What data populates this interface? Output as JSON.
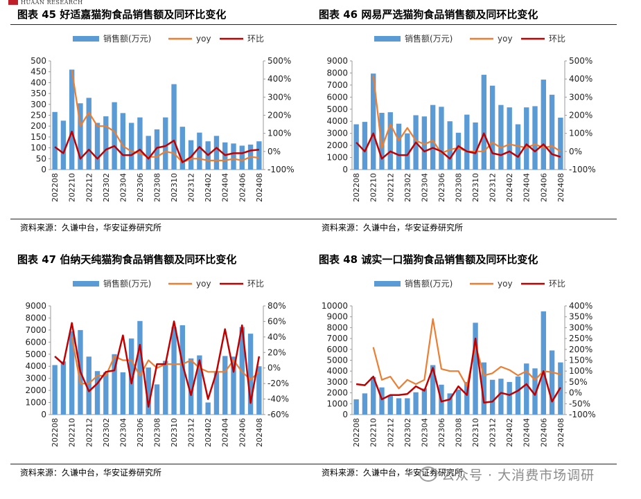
{
  "header": {
    "logo_text": "HUAAN RESEARCH"
  },
  "watermark": {
    "text": "公众号 · 大消费市场调研"
  },
  "legend_labels": {
    "sales": "销售额(万元)",
    "yoy": "yoy",
    "mom": "环比"
  },
  "colors": {
    "bar": "#5b9bd5",
    "yoy": "#ed7d31",
    "mom": "#c00000",
    "rule": "#222222"
  },
  "panels": [
    {
      "title": "图表 45 好适嘉猫狗食品销售额及同环比变化",
      "source": "资料来源：久谦中台，华安证券研究所"
    },
    {
      "title": "图表 46 网易严选猫狗食品销售额及同环比变化",
      "source": "资料来源：久谦中台，华安证券研究所"
    },
    {
      "title": "图表 47 伯纳天纯猫狗食品销售额及同环比变化",
      "source": "资料来源：久谦中台，华安证券研究所"
    },
    {
      "title": "图表 48 诚实一口猫狗食品销售额及同环比变化",
      "source": "资料来源：久谦中台，华安证券研究所"
    }
  ],
  "chart_data": [
    {
      "type": "bar+line",
      "categories": [
        "202208",
        "202209",
        "202210",
        "202211",
        "202212",
        "202301",
        "202302",
        "202303",
        "202304",
        "202305",
        "202306",
        "202307",
        "202308",
        "202309",
        "202310",
        "202311",
        "202312",
        "202401",
        "202402",
        "202403",
        "202404",
        "202405",
        "202406",
        "202407",
        "202408"
      ],
      "x_tick_labels": [
        "202208",
        "202210",
        "202212",
        "202302",
        "202304",
        "202306",
        "202308",
        "202310",
        "202312",
        "202402",
        "202404",
        "202406",
        "202408"
      ],
      "left_axis": {
        "min": 0,
        "max": 500,
        "step": 50,
        "ticks": [
          "0",
          "50",
          "100",
          "150",
          "200",
          "250",
          "300",
          "350",
          "400",
          "450",
          "500"
        ]
      },
      "right_axis": {
        "min": -100,
        "max": 500,
        "step": 100,
        "ticks": [
          "-100%",
          "0%",
          "100%",
          "200%",
          "300%",
          "400%",
          "500%"
        ]
      },
      "series": [
        {
          "name": "销售额(万元)",
          "type": "bar",
          "axis": "left",
          "values": [
            265,
            225,
            460,
            305,
            330,
            215,
            245,
            310,
            260,
            215,
            240,
            155,
            185,
            240,
            393,
            197,
            135,
            170,
            130,
            155,
            125,
            120,
            110,
            115,
            130
          ]
        },
        {
          "name": "yoy",
          "type": "line",
          "axis": "right",
          "values": [
            null,
            null,
            450,
            140,
            215,
            140,
            140,
            110,
            30,
            0,
            -10,
            -30,
            -30,
            0,
            -10,
            -60,
            -40,
            -40,
            -50,
            -50,
            -50,
            -40,
            -50,
            -30,
            -35
          ]
        },
        {
          "name": "环比",
          "type": "line",
          "axis": "right",
          "values": [
            25,
            -10,
            110,
            -40,
            10,
            -40,
            10,
            30,
            -20,
            -20,
            10,
            -40,
            20,
            30,
            60,
            -60,
            -30,
            25,
            -20,
            20,
            -20,
            -10,
            -10,
            5,
            10
          ]
        }
      ]
    },
    {
      "type": "bar+line",
      "categories": [
        "202208",
        "202209",
        "202210",
        "202211",
        "202212",
        "202301",
        "202302",
        "202303",
        "202304",
        "202305",
        "202306",
        "202307",
        "202308",
        "202309",
        "202310",
        "202311",
        "202312",
        "202401",
        "202402",
        "202403",
        "202404",
        "202405",
        "202406",
        "202407",
        "202408"
      ],
      "x_tick_labels": [
        "202208",
        "202210",
        "202212",
        "202302",
        "202304",
        "202306",
        "202308",
        "202310",
        "202312",
        "202402",
        "202404",
        "202406",
        "202408"
      ],
      "left_axis": {
        "min": 0,
        "max": 9000,
        "step": 1000,
        "ticks": [
          "0",
          "1000",
          "2000",
          "3000",
          "4000",
          "5000",
          "6000",
          "7000",
          "8000",
          "9000"
        ]
      },
      "right_axis": {
        "min": -100,
        "max": 500,
        "step": 100,
        "ticks": [
          "-100%",
          "0%",
          "100%",
          "200%",
          "300%",
          "400%",
          "500%"
        ]
      },
      "series": [
        {
          "name": "销售额(万元)",
          "type": "bar",
          "axis": "left",
          "values": [
            3750,
            3950,
            7950,
            4700,
            4750,
            3800,
            3000,
            4500,
            4400,
            5350,
            5200,
            4000,
            3050,
            4550,
            3900,
            7850,
            6950,
            5350,
            5150,
            3750,
            5150,
            5250,
            7450,
            6200,
            4300
          ]
        },
        {
          "name": "yoy",
          "type": "line",
          "axis": "right",
          "values": [
            null,
            null,
            420,
            20,
            150,
            60,
            130,
            60,
            40,
            60,
            -10,
            10,
            20,
            0,
            0,
            0,
            50,
            20,
            40,
            30,
            20,
            40,
            20,
            30,
            0
          ]
        },
        {
          "name": "环比",
          "type": "line",
          "axis": "right",
          "values": [
            50,
            0,
            100,
            -40,
            0,
            -20,
            -20,
            50,
            0,
            20,
            0,
            -40,
            30,
            0,
            -10,
            100,
            -10,
            -20,
            0,
            -30,
            40,
            0,
            40,
            -15,
            -30
          ]
        }
      ]
    },
    {
      "type": "bar+line",
      "categories": [
        "202208",
        "202209",
        "202210",
        "202211",
        "202212",
        "202301",
        "202302",
        "202303",
        "202304",
        "202305",
        "202306",
        "202307",
        "202308",
        "202309",
        "202310",
        "202311",
        "202312",
        "202401",
        "202402",
        "202403",
        "202404",
        "202405",
        "202406",
        "202407",
        "202408"
      ],
      "x_tick_labels": [
        "202208",
        "202210",
        "202212",
        "202302",
        "202304",
        "202306",
        "202308",
        "202310",
        "202312",
        "202402",
        "202404",
        "202406",
        "202408"
      ],
      "left_axis": {
        "min": 0,
        "max": 9000,
        "step": 1000,
        "ticks": [
          "0",
          "1000",
          "2000",
          "3000",
          "4000",
          "5000",
          "6000",
          "7000",
          "8000",
          "9000"
        ]
      },
      "right_axis": {
        "min": -60,
        "max": 80,
        "step": 20,
        "ticks": [
          "-60%",
          "-40%",
          "-20%",
          "0%",
          "20%",
          "40%",
          "60%",
          "80%"
        ]
      },
      "series": [
        {
          "name": "销售额(万元)",
          "type": "bar",
          "axis": "left",
          "values": [
            4100,
            4400,
            6900,
            7000,
            4800,
            3600,
            3500,
            5000,
            3500,
            6300,
            7750,
            3900,
            2500,
            4450,
            7250,
            7400,
            4650,
            4900,
            1000,
            3600,
            4850,
            4800,
            7250,
            6700,
            4000
          ]
        },
        {
          "name": "yoy",
          "type": "line",
          "axis": "right",
          "values": [
            null,
            null,
            40,
            -20,
            -20,
            -10,
            -10,
            15,
            10,
            10,
            -10,
            10,
            0,
            5,
            5,
            5,
            10,
            0,
            -5,
            -5,
            -5,
            10,
            -5,
            -15,
            -5
          ]
        },
        {
          "name": "环比",
          "type": "line",
          "axis": "right",
          "values": [
            15,
            5,
            58,
            -5,
            -30,
            -20,
            -5,
            -3,
            42,
            -20,
            30,
            -50,
            5,
            5,
            60,
            5,
            -35,
            10,
            -40,
            -5,
            50,
            -5,
            55,
            -45,
            15
          ]
        }
      ]
    },
    {
      "type": "bar+line",
      "categories": [
        "202208",
        "202209",
        "202210",
        "202211",
        "202212",
        "202301",
        "202302",
        "202303",
        "202304",
        "202305",
        "202306",
        "202307",
        "202308",
        "202309",
        "202310",
        "202311",
        "202312",
        "202401",
        "202402",
        "202403",
        "202404",
        "202405",
        "202406",
        "202407",
        "202408"
      ],
      "x_tick_labels": [
        "202208",
        "202210",
        "202212",
        "202302",
        "202304",
        "202306",
        "202308",
        "202310",
        "202312",
        "202402",
        "202404",
        "202406",
        "202408"
      ],
      "left_axis": {
        "min": 0,
        "max": 10000,
        "step": 1000,
        "ticks": [
          "0",
          "1000",
          "2000",
          "3000",
          "4000",
          "5000",
          "6000",
          "7000",
          "8000",
          "9000",
          "10000"
        ]
      },
      "right_axis": {
        "min": -100,
        "max": 400,
        "step": 50,
        "ticks": [
          "-100%",
          "-50%",
          "0%",
          "50%",
          "100%",
          "150%",
          "200%",
          "250%",
          "300%",
          "350%",
          "400%"
        ]
      },
      "series": [
        {
          "name": "销售额(万元)",
          "type": "bar",
          "axis": "left",
          "values": [
            1400,
            1950,
            3450,
            2500,
            1800,
            1500,
            1500,
            2050,
            2400,
            4550,
            2750,
            1950,
            2300,
            3000,
            8450,
            4800,
            3200,
            3300,
            3000,
            3500,
            4700,
            4250,
            9500,
            5900,
            4800
          ]
        },
        {
          "name": "yoy",
          "type": "line",
          "axis": "right",
          "values": [
            null,
            null,
            210,
            60,
            75,
            20,
            60,
            40,
            60,
            340,
            110,
            100,
            100,
            30,
            220,
            80,
            90,
            120,
            105,
            80,
            100,
            60,
            100,
            95,
            85
          ]
        },
        {
          "name": "环比",
          "type": "line",
          "axis": "right",
          "values": [
            40,
            35,
            75,
            -30,
            -10,
            -10,
            -5,
            30,
            10,
            115,
            -40,
            -30,
            30,
            -10,
            250,
            -45,
            -40,
            0,
            -10,
            10,
            40,
            -10,
            100,
            -40,
            25
          ]
        }
      ]
    }
  ]
}
